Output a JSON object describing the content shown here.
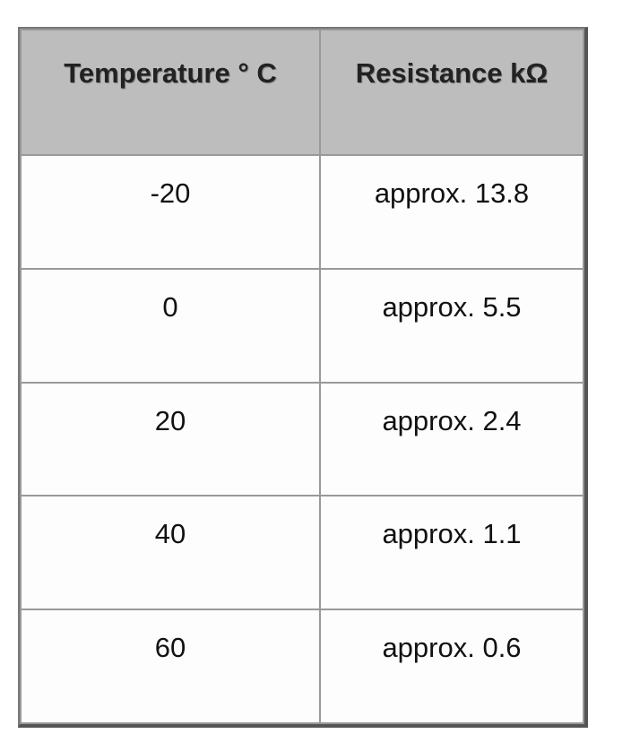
{
  "table": {
    "header": [
      "Temperature ° C",
      "Resistance kΩ"
    ],
    "rows": [
      [
        "-20",
        "approx. 13.8"
      ],
      [
        "0",
        "approx. 5.5"
      ],
      [
        "20",
        "approx. 2.4"
      ],
      [
        "40",
        "approx. 1.1"
      ],
      [
        "60",
        "approx. 0.6"
      ]
    ]
  }
}
